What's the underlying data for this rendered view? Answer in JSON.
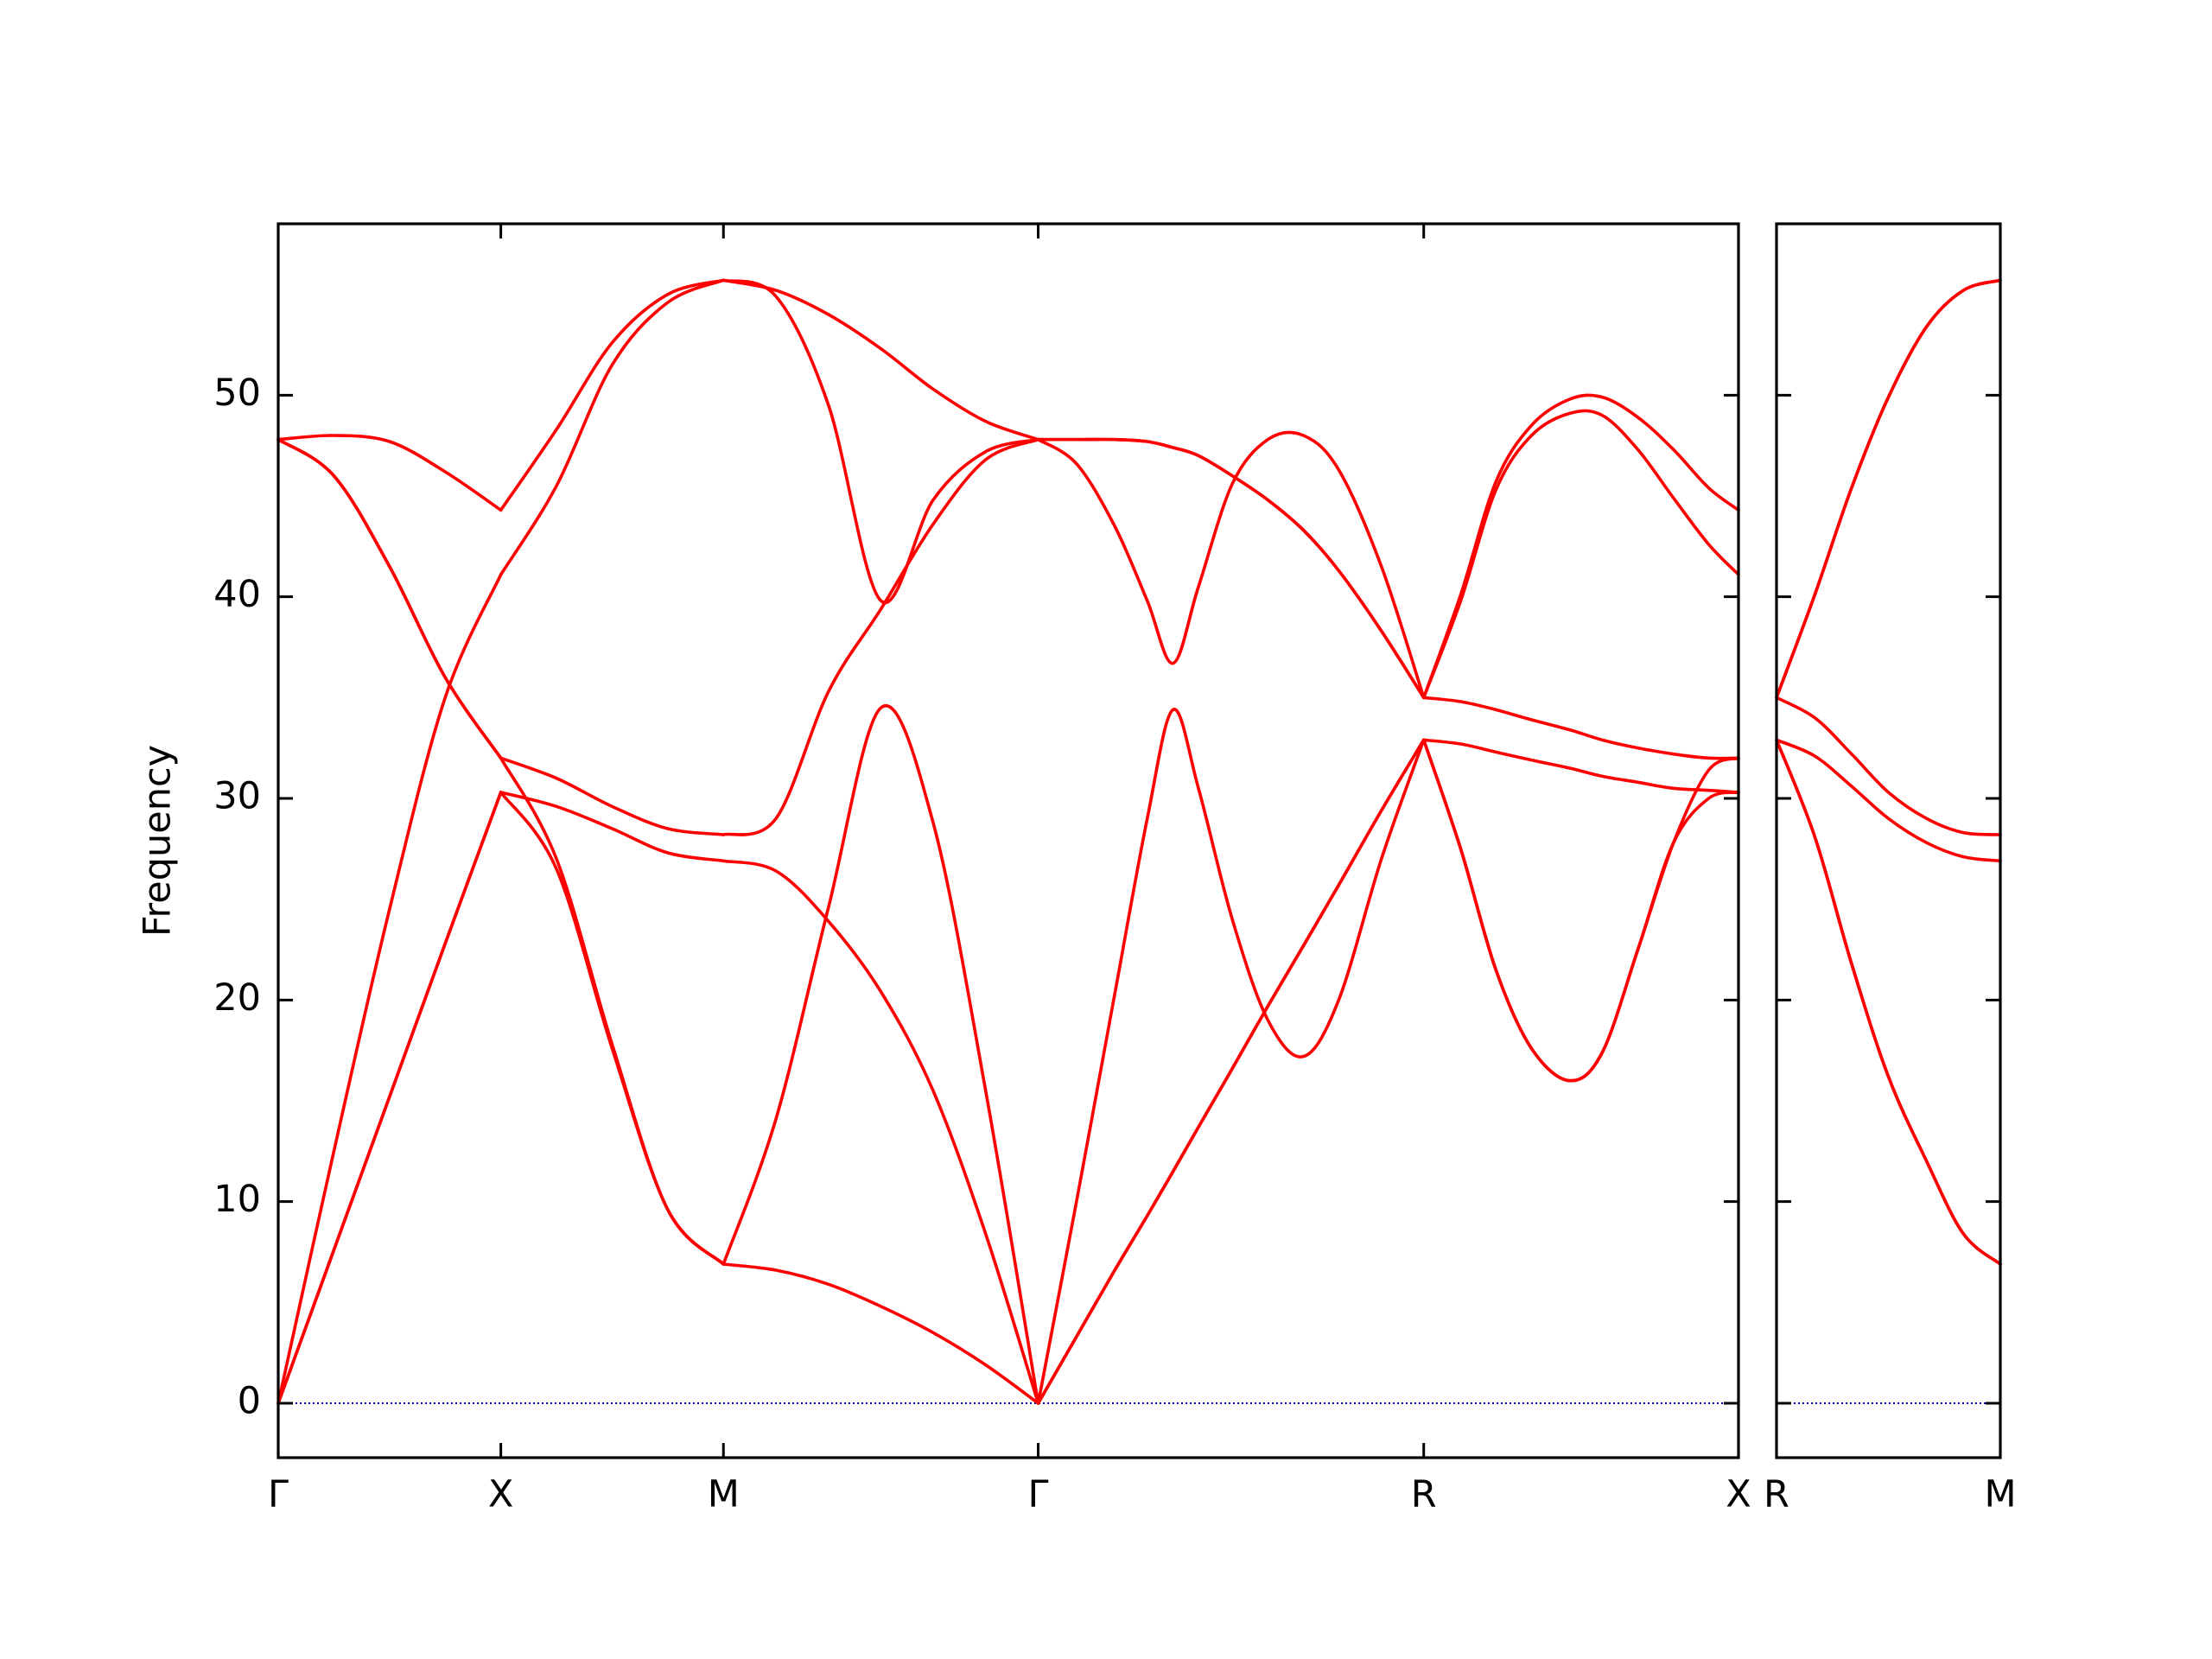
{
  "chart_data": [
    {
      "type": "line",
      "ylabel": "Frequency",
      "color": "#ff0000",
      "zero_line_color": "#0000cc",
      "xlim": [
        0,
        3.28
      ],
      "ylim": [
        -2.7,
        58.5
      ],
      "xticks": [
        {
          "value": 0,
          "label": "Γ"
        },
        {
          "value": 0.5,
          "label": "X"
        },
        {
          "value": 1.0,
          "label": "M"
        },
        {
          "value": 1.707,
          "label": "Γ"
        },
        {
          "value": 2.573,
          "label": "R"
        },
        {
          "value": 3.28,
          "label": "X"
        }
      ],
      "yticks": [
        0,
        10,
        20,
        30,
        40,
        50
      ],
      "x": [
        0,
        0.125,
        0.25,
        0.375,
        0.5,
        0.625,
        0.75,
        0.875,
        1.0,
        1.118,
        1.236,
        1.354,
        1.471,
        1.589,
        1.707,
        1.793,
        1.879,
        1.952,
        2.01,
        2.067,
        2.143,
        2.223,
        2.303,
        2.382,
        2.478,
        2.573,
        2.656,
        2.735,
        2.815,
        2.901,
        2.974,
        3.054,
        3.134,
        3.213,
        3.28
      ],
      "series": [
        {
          "values": [
            0,
            7.6,
            15.2,
            22.8,
            30.3,
            29.6,
            28.5,
            27.3,
            26.9,
            26.4,
            23.9,
            20.4,
            15.5,
            8.4,
            0,
            3.3,
            6.6,
            9.3,
            11.5,
            13.7,
            16.6,
            19.7,
            22.7,
            25.7,
            29.4,
            32.9,
            27.5,
            21.5,
            17.6,
            16.0,
            17.4,
            22.5,
            27.8,
            31.4,
            32.0
          ]
        },
        {
          "values": [
            0,
            7.6,
            15.2,
            22.8,
            30.3,
            26.5,
            17.6,
            9.6,
            6.9,
            14.1,
            24.6,
            34.5,
            28.8,
            15.5,
            0,
            10.0,
            20.3,
            29.0,
            34.4,
            30.5,
            24.0,
            19.0,
            17.2,
            20.0,
            27.0,
            32.9,
            32.7,
            32.3,
            31.9,
            31.5,
            31.1,
            30.8,
            30.5,
            30.4,
            30.3
          ]
        },
        {
          "values": [
            0,
            12.5,
            24.5,
            35,
            41.1,
            45.5,
            51.5,
            54.6,
            55.7,
            54.9,
            49.5,
            39.8,
            44.8,
            47.2,
            47.8,
            46.6,
            43.5,
            39.8,
            36.7,
            40.5,
            45.6,
            47.8,
            48.0,
            46.3,
            41.5,
            35.0,
            34.8,
            34.4,
            33.9,
            33.4,
            32.9,
            32.5,
            32.2,
            32.0,
            32.0
          ]
        },
        {
          "values": [
            47.8,
            46.0,
            41.5,
            36.0,
            32.0,
            31.0,
            29.6,
            28.5,
            28.2,
            29.0,
            35.3,
            39.4,
            43.6,
            46.8,
            47.8,
            47.8,
            47.8,
            47.7,
            47.4,
            47.0,
            46.0,
            44.8,
            43.3,
            41.3,
            38.3,
            35.0,
            40.1,
            45.7,
            48.5,
            49.8,
            49.9,
            48.9,
            47.3,
            45.4,
            44.3
          ]
        },
        {
          "values": [
            47.8,
            46.0,
            41.5,
            36.0,
            32.0,
            27.0,
            17.8,
            9.6,
            6.9,
            6.6,
            5.9,
            4.8,
            3.5,
            1.9,
            0,
            3.3,
            6.6,
            9.3,
            11.5,
            13.7,
            16.6,
            19.7,
            22.7,
            25.7,
            29.4,
            32.9,
            27.5,
            21.5,
            17.6,
            16.0,
            17.4,
            22.5,
            27.8,
            30.0,
            30.3
          ]
        },
        {
          "values": [
            47.8,
            48.0,
            47.7,
            46.2,
            44.3,
            48.3,
            52.6,
            55.0,
            55.7,
            55.2,
            54.0,
            52.3,
            50.3,
            48.7,
            47.8,
            47.8,
            47.8,
            47.7,
            47.4,
            47.0,
            46.0,
            44.8,
            43.3,
            41.3,
            38.3,
            35.0,
            39.8,
            45.3,
            48.0,
            49.1,
            49.0,
            47.3,
            44.9,
            42.6,
            41.1
          ]
        }
      ]
    },
    {
      "type": "line",
      "color": "#ff0000",
      "zero_line_color": "#0000cc",
      "ytick_labels": false,
      "xlim": [
        0,
        0.5
      ],
      "ylim": [
        -2.7,
        58.5
      ],
      "xticks": [
        {
          "value": 0,
          "label": "R"
        },
        {
          "value": 0.5,
          "label": "M"
        }
      ],
      "yticks": [
        0,
        10,
        20,
        30,
        40,
        50
      ],
      "x": [
        0,
        0.0855,
        0.1677,
        0.25,
        0.3354,
        0.4177,
        0.5
      ],
      "series": [
        {
          "values": [
            35.0,
            40.1,
            45.4,
            49.9,
            53.4,
            55.2,
            55.7
          ]
        },
        {
          "values": [
            35.0,
            40.1,
            45.4,
            49.9,
            53.4,
            55.2,
            55.7
          ]
        },
        {
          "values": [
            35.0,
            34.0,
            32.2,
            30.3,
            29.0,
            28.3,
            28.2
          ]
        },
        {
          "values": [
            32.9,
            32.1,
            30.6,
            29.0,
            27.8,
            27.1,
            26.9
          ]
        },
        {
          "values": [
            32.9,
            28.1,
            21.8,
            16.2,
            12.0,
            8.4,
            6.9
          ]
        },
        {
          "values": [
            32.9,
            28.1,
            21.8,
            16.2,
            12.0,
            8.4,
            6.9
          ]
        }
      ]
    }
  ]
}
